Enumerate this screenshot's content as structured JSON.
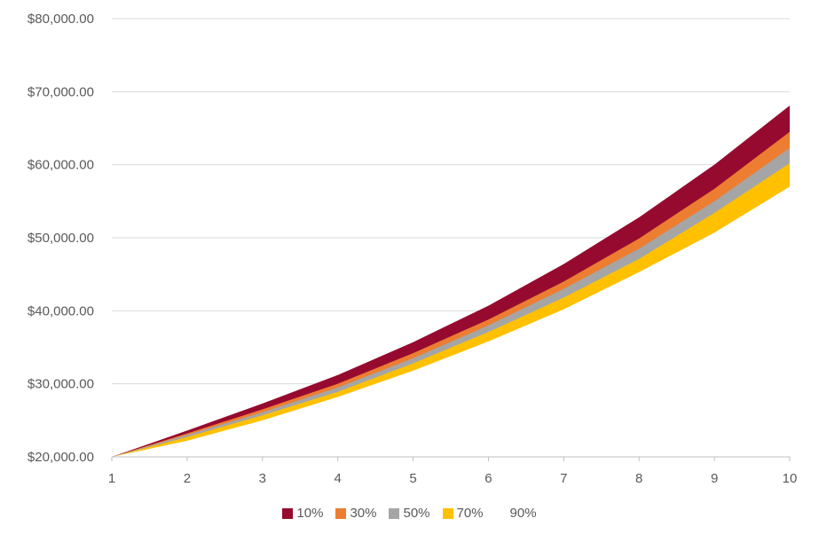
{
  "chart_data": {
    "type": "area",
    "x": [
      1,
      2,
      3,
      4,
      5,
      6,
      7,
      8,
      9,
      10
    ],
    "ylim": [
      20000,
      80000
    ],
    "yticks": [
      "$20,000.00",
      "$30,000.00",
      "$40,000.00",
      "$50,000.00",
      "$60,000.00",
      "$70,000.00",
      "$80,000.00"
    ],
    "xticks": [
      "1",
      "2",
      "3",
      "4",
      "5",
      "6",
      "7",
      "8",
      "9",
      "10"
    ],
    "grid": true,
    "legend_position": "bottom",
    "series": [
      {
        "name": "90%",
        "color": "#ffffff",
        "values": [
          20000,
          22200,
          25000,
          28200,
          31800,
          35800,
          40200,
          45300,
          50700,
          57000
        ]
      },
      {
        "name": "70%",
        "color": "#FFC000",
        "values": [
          20000,
          22700,
          25700,
          28900,
          32800,
          37100,
          41800,
          47100,
          53400,
          60200
        ]
      },
      {
        "name": "50%",
        "color": "#A5A5A5",
        "values": [
          20000,
          23000,
          26100,
          29500,
          33500,
          38000,
          43000,
          48500,
          55000,
          62300
        ]
      },
      {
        "name": "30%",
        "color": "#ED7D31",
        "values": [
          20000,
          23200,
          26500,
          30000,
          34200,
          38800,
          44000,
          49900,
          56700,
          64500
        ]
      },
      {
        "name": "10%",
        "color": "#970A2F",
        "values": [
          20000,
          23600,
          27300,
          31200,
          35700,
          40700,
          46400,
          52800,
          60000,
          68100
        ]
      }
    ],
    "legend_order": [
      "10%",
      "30%",
      "50%",
      "70%",
      "90%"
    ]
  }
}
